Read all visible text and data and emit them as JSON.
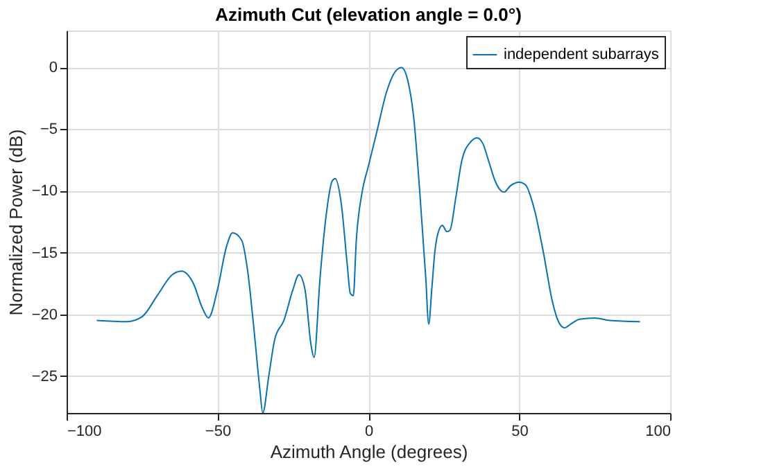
{
  "chart_data": {
    "type": "line",
    "title": "Azimuth Cut (elevation angle = 0.0°)",
    "xlabel": "Azimuth Angle (degrees)",
    "ylabel": "Normalized Power (dB)",
    "x": [
      -90,
      -80,
      -75,
      -70,
      -65,
      -62,
      -58,
      -55,
      -53,
      -50,
      -47,
      -45,
      -42,
      -40,
      -38,
      -36,
      -35,
      -33,
      -31,
      -28,
      -25,
      -23,
      -21,
      -19,
      -18,
      -16,
      -14,
      -12,
      -11,
      -9,
      -7,
      -6,
      -5,
      -4,
      -2,
      0,
      3,
      6,
      9,
      11,
      13,
      15,
      17,
      19,
      20,
      21,
      22,
      23,
      24.5,
      26,
      27,
      29,
      31,
      34,
      36,
      38,
      40,
      42,
      44,
      45,
      47,
      50,
      52,
      55,
      58,
      61,
      63,
      65,
      67,
      70,
      75,
      80,
      90
    ],
    "series": [
      {
        "name": "independent subarrays",
        "color": "#0072bd",
        "values": [
          -20.5,
          -20.6,
          -20.2,
          -18.5,
          -16.8,
          -16.5,
          -17.5,
          -19.5,
          -20.3,
          -18,
          -14.5,
          -13.4,
          -14,
          -16.5,
          -21,
          -26,
          -28,
          -25,
          -22,
          -20.5,
          -18,
          -16.8,
          -18,
          -22.5,
          -23.5,
          -17,
          -12,
          -9.2,
          -9,
          -11,
          -16,
          -18.3,
          -18.5,
          -14,
          -10,
          -8,
          -5,
          -2,
          -0.3,
          0,
          -1,
          -4,
          -10,
          -17,
          -20.8,
          -18,
          -15,
          -13.5,
          -12.8,
          -13.3,
          -13.2,
          -10.5,
          -7.5,
          -6,
          -5.7,
          -6.2,
          -7.7,
          -9.2,
          -10,
          -10.1,
          -9.6,
          -9.3,
          -9.5,
          -11.5,
          -15,
          -19,
          -20.6,
          -21.1,
          -20.8,
          -20.4,
          -20.3,
          -20.5,
          -20.6
        ]
      }
    ],
    "xlim": [
      -100,
      100
    ],
    "xticks": [
      -100,
      -50,
      0,
      50,
      100
    ],
    "ylim": [
      -28,
      3
    ],
    "yticks": [
      -25,
      -20,
      -15,
      -10,
      -5,
      0
    ],
    "grid": true,
    "legend": "top right",
    "line_style": "solid",
    "marker": "none"
  }
}
